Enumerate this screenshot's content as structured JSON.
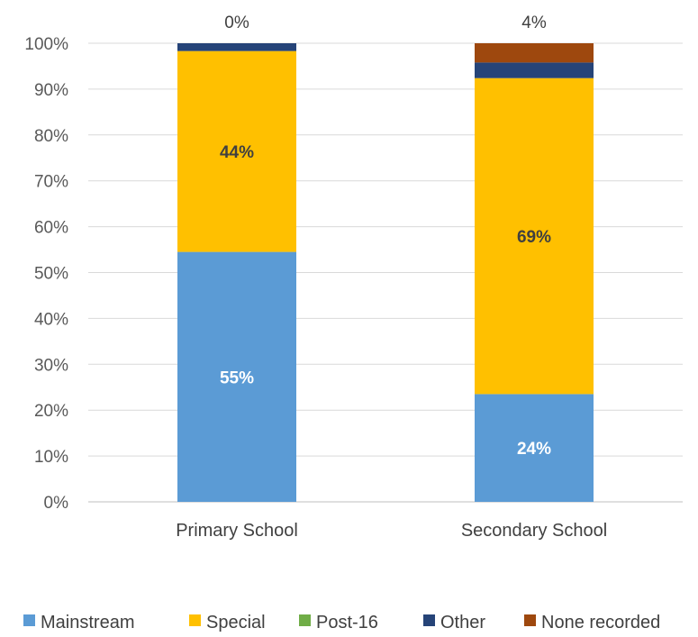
{
  "chart_data": {
    "type": "bar",
    "stacked": true,
    "categories": [
      "Primary School",
      "Secondary School"
    ],
    "series": [
      {
        "name": "Mainstream",
        "color": "#5B9BD5",
        "values": [
          54.5,
          23.5
        ],
        "labels": [
          "55%",
          "24%"
        ],
        "label_color": "#ffffff"
      },
      {
        "name": "Special",
        "color": "#FFC000",
        "values": [
          43.8,
          68.9
        ],
        "labels": [
          "44%",
          "69%"
        ],
        "label_color": "#404040"
      },
      {
        "name": "Post-16",
        "color": "#70AD47",
        "values": [
          0,
          0
        ],
        "labels": [
          "",
          ""
        ],
        "label_color": "#404040"
      },
      {
        "name": "Other",
        "color": "#264478",
        "values": [
          1.7,
          3.4
        ],
        "labels": [
          "",
          ""
        ],
        "label_color": "#ffffff"
      },
      {
        "name": "None recorded",
        "color": "#9E480E",
        "values": [
          0,
          4.2
        ],
        "labels": [
          "",
          ""
        ],
        "label_color": "#ffffff"
      }
    ],
    "top_labels": [
      "0%",
      "4%"
    ],
    "ylim": [
      0,
      100
    ],
    "yticks": [
      0,
      10,
      20,
      30,
      40,
      50,
      60,
      70,
      80,
      90,
      100
    ],
    "ytick_labels": [
      "0%",
      "10%",
      "20%",
      "30%",
      "40%",
      "50%",
      "60%",
      "70%",
      "80%",
      "90%",
      "100%"
    ],
    "grid": true,
    "legend": "bottom",
    "title": "",
    "xlabel": "",
    "ylabel": ""
  }
}
